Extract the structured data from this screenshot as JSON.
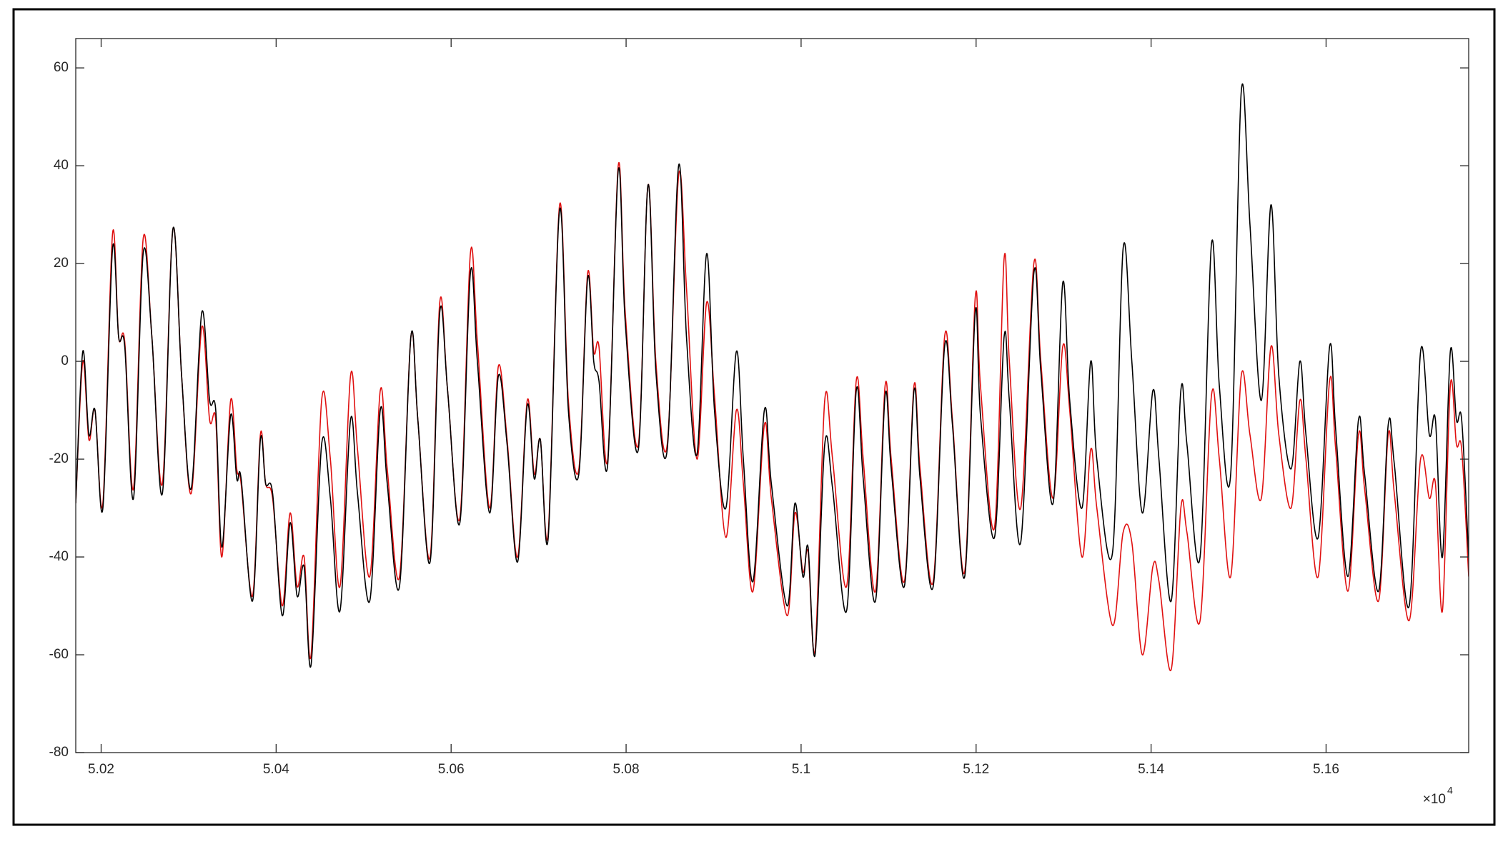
{
  "chart_data": {
    "type": "line",
    "x_multiplier": "×10",
    "x_multiplier_exponent": "4",
    "xlim": [
      5.0171,
      5.1763
    ],
    "xticks": [
      5.02,
      5.04,
      5.06,
      5.08,
      5.1,
      5.12,
      5.14,
      5.16
    ],
    "ylim": [
      -80,
      66
    ],
    "yticks": [
      -80,
      -60,
      -40,
      -20,
      0,
      20,
      40,
      60
    ],
    "grid": false,
    "x": [
      5.0171,
      5.0179,
      5.0186,
      5.0193,
      5.0202,
      5.0213,
      5.022,
      5.0227,
      5.0237,
      5.0248,
      5.0258,
      5.027,
      5.0282,
      5.0292,
      5.0303,
      5.0315,
      5.0324,
      5.0331,
      5.0338,
      5.0348,
      5.0355,
      5.036,
      5.0373,
      5.0382,
      5.0388,
      5.0396,
      5.0407,
      5.0416,
      5.0424,
      5.0432,
      5.044,
      5.0452,
      5.0462,
      5.0473,
      5.0485,
      5.0493,
      5.0507,
      5.0519,
      5.0527,
      5.0541,
      5.0554,
      5.0562,
      5.0576,
      5.0587,
      5.0596,
      5.061,
      5.0622,
      5.063,
      5.0644,
      5.0654,
      5.0664,
      5.0676,
      5.0687,
      5.0695,
      5.0702,
      5.0711,
      5.0724,
      5.0734,
      5.0746,
      5.0756,
      5.0763,
      5.0769,
      5.0779,
      5.0791,
      5.0799,
      5.0814,
      5.0825,
      5.0834,
      5.0847,
      5.086,
      5.0869,
      5.0881,
      5.0892,
      5.0901,
      5.0914,
      5.0926,
      5.0934,
      5.0945,
      5.0958,
      5.0966,
      5.0984,
      5.0993,
      5.1002,
      5.1008,
      5.1016,
      5.1027,
      5.1036,
      5.1052,
      5.1063,
      5.1071,
      5.1085,
      5.1096,
      5.1103,
      5.1118,
      5.1129,
      5.1136,
      5.1151,
      5.1164,
      5.1173,
      5.1187,
      5.1199,
      5.1205,
      5.1221,
      5.1232,
      5.1238,
      5.1251,
      5.1266,
      5.1274,
      5.1288,
      5.1299,
      5.1307,
      5.1321,
      5.1331,
      5.1338,
      5.1356,
      5.1368,
      5.1378,
      5.139,
      5.1402,
      5.1409,
      5.1423,
      5.1434,
      5.1441,
      5.1456,
      5.1469,
      5.1478,
      5.1491,
      5.1503,
      5.1513,
      5.1526,
      5.1537,
      5.1546,
      5.156,
      5.157,
      5.1577,
      5.1591,
      5.1604,
      5.1611,
      5.1625,
      5.1637,
      5.1644,
      5.166,
      5.1671,
      5.1678,
      5.1695,
      5.1708,
      5.1718,
      5.1725,
      5.1733,
      5.1742,
      5.1749,
      5.1755,
      5.1763
    ],
    "series": [
      {
        "color": "#e01010",
        "values": [
          -29,
          0,
          -16,
          -10,
          -29,
          26,
          5,
          4,
          -26,
          25,
          5,
          -25,
          27,
          -3,
          -27,
          7,
          -12,
          -12,
          -40,
          -8,
          -22,
          -25,
          -48,
          -15,
          -25,
          -28,
          -50,
          -31,
          -46,
          -40,
          -60,
          -8,
          -20,
          -46,
          -3,
          -18,
          -44,
          -6,
          -22,
          -44,
          5,
          -12,
          -40,
          12,
          -6,
          -32,
          22,
          4,
          -30,
          -1,
          -16,
          -40,
          -8,
          -23,
          -16,
          -35,
          32,
          -8,
          -22,
          18,
          2,
          3,
          -20,
          40,
          10,
          -17,
          36,
          0,
          -17,
          38,
          15,
          -20,
          12,
          -7,
          -36,
          -10,
          -25,
          -47,
          -13,
          -28,
          -52,
          -31,
          -43,
          -39,
          -59,
          -8,
          -20,
          -46,
          -4,
          -20,
          -47,
          -5,
          -20,
          -45,
          -5,
          -22,
          -45,
          5,
          -12,
          -43,
          13,
          -5,
          -34,
          21,
          0,
          -30,
          20,
          0,
          -28,
          3,
          -10,
          -40,
          -18,
          -30,
          -54,
          -35,
          -37,
          -60,
          -42,
          -45,
          -63,
          -30,
          -35,
          -53,
          -7,
          -20,
          -44,
          -3,
          -15,
          -28,
          3,
          -15,
          -30,
          -8,
          -20,
          -44,
          -4,
          -18,
          -47,
          -15,
          -26,
          -49,
          -15,
          -27,
          -53,
          -20,
          -28,
          -25,
          -51,
          -5,
          -17,
          -18,
          -44
        ]
      },
      {
        "color": "#000000",
        "values": [
          -29,
          2,
          -15,
          -10,
          -30,
          23,
          5,
          3,
          -28,
          22,
          5,
          -27,
          27,
          -3,
          -26,
          10,
          -8,
          -10,
          -38,
          -11,
          -24,
          -24,
          -49,
          -16,
          -25,
          -27,
          -52,
          -33,
          -48,
          -42,
          -62,
          -17,
          -28,
          -51,
          -12,
          -27,
          -49,
          -10,
          -25,
          -46,
          5,
          -12,
          -41,
          10,
          -6,
          -33,
          18,
          0,
          -31,
          -3,
          -17,
          -41,
          -9,
          -24,
          -16,
          -36,
          31,
          -10,
          -23,
          17,
          0,
          -4,
          -21,
          39,
          8,
          -18,
          36,
          -2,
          -18,
          40,
          5,
          -19,
          22,
          -10,
          -30,
          2,
          -20,
          -45,
          -10,
          -25,
          -50,
          -29,
          -44,
          -38,
          -60,
          -17,
          -26,
          -51,
          -6,
          -24,
          -49,
          -7,
          -22,
          -46,
          -6,
          -24,
          -46,
          3,
          -13,
          -44,
          10,
          -11,
          -36,
          5,
          -8,
          -37,
          18,
          -2,
          -29,
          16,
          -8,
          -30,
          0,
          -20,
          -39,
          23,
          0,
          -31,
          -6,
          -20,
          -49,
          -6,
          -17,
          -40,
          24,
          -5,
          -23,
          55,
          28,
          -8,
          32,
          -3,
          -22,
          0,
          -15,
          -36,
          3,
          -14,
          -44,
          -12,
          -23,
          -47,
          -13,
          -21,
          -50,
          2,
          -15,
          -12,
          -40,
          2,
          -12,
          -12,
          -40
        ]
      }
    ]
  }
}
